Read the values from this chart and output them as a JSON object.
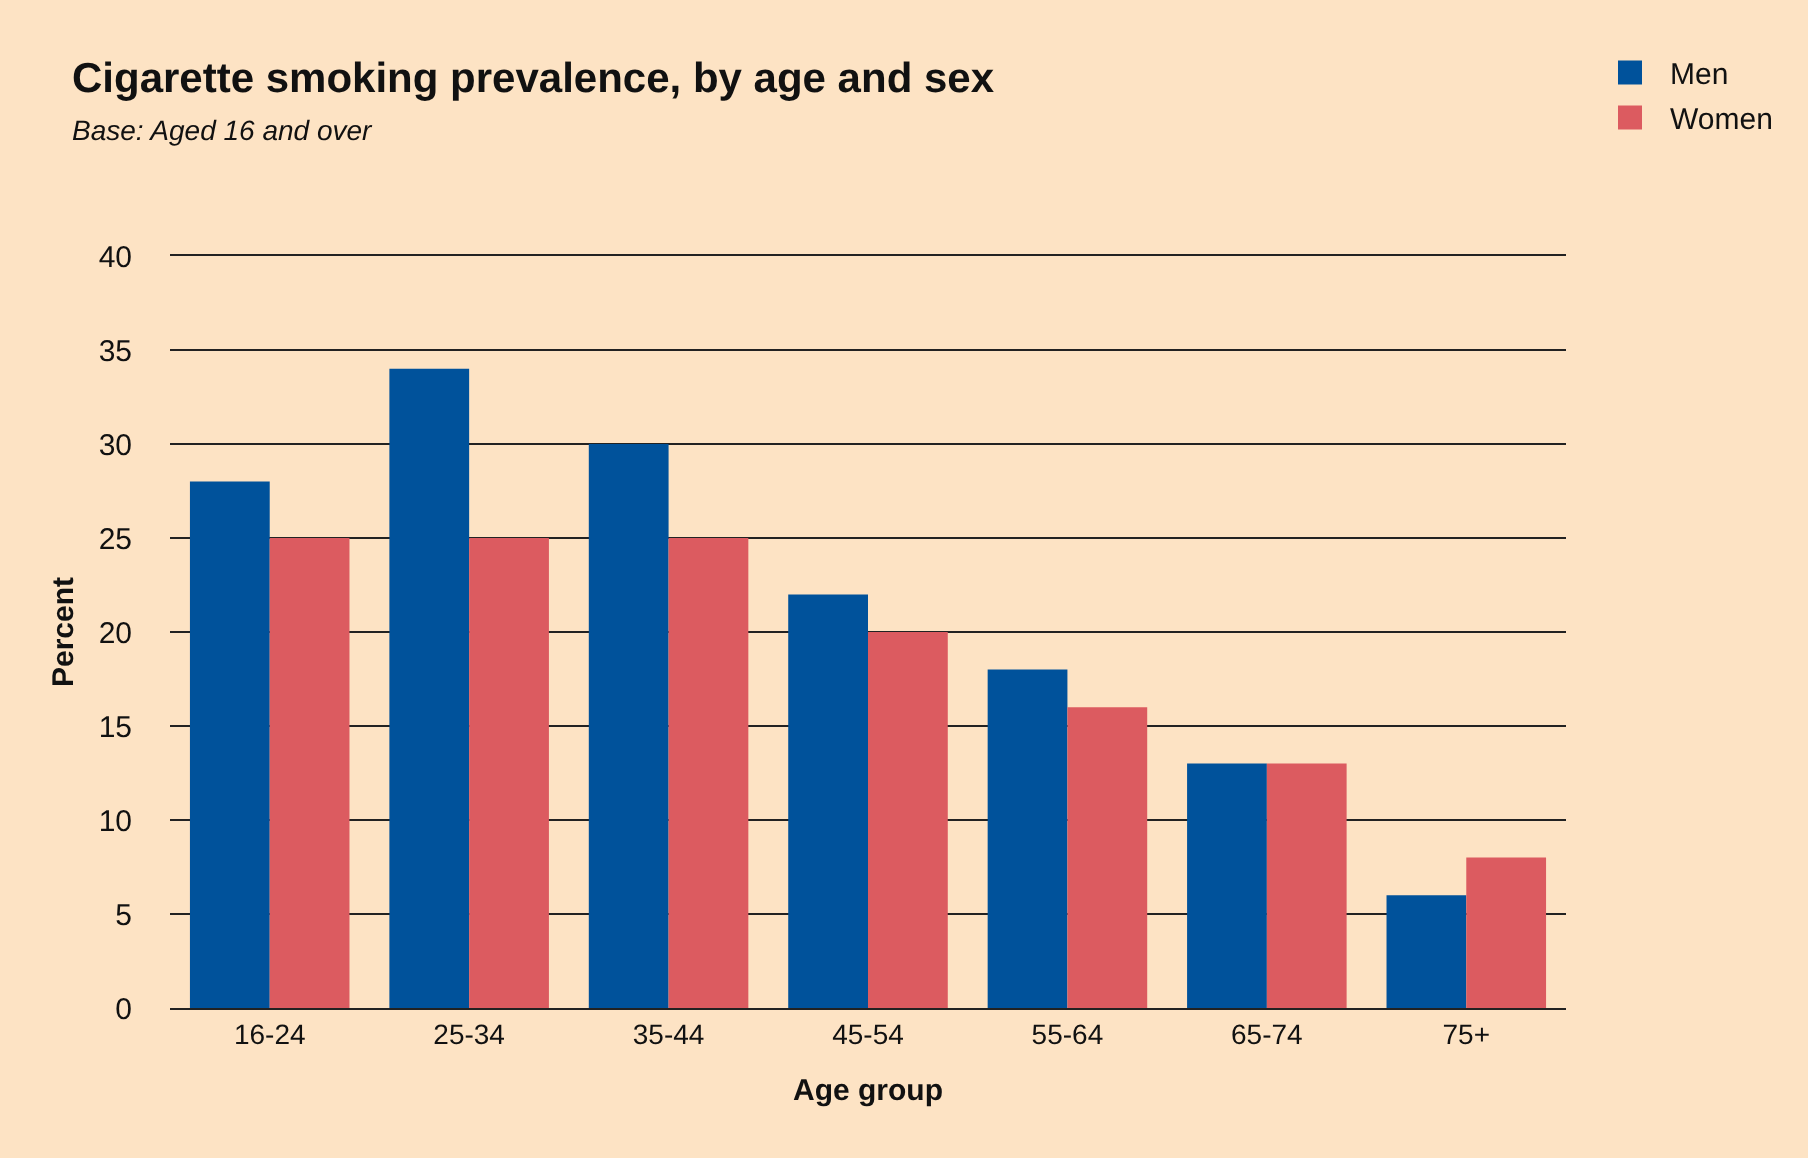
{
  "chart_data": {
    "type": "bar",
    "title": "Cigarette smoking prevalence, by age and sex",
    "subtitle": "Base: Aged 16 and over",
    "xlabel": "Age group",
    "ylabel": "Percent",
    "categories": [
      "16-24",
      "25-34",
      "35-44",
      "45-54",
      "55-64",
      "65-74",
      "75+"
    ],
    "series": [
      {
        "name": "Men",
        "color": "#00529b",
        "values": [
          28,
          34,
          30,
          22,
          18,
          13,
          6
        ]
      },
      {
        "name": "Women",
        "color": "#dc5b60",
        "values": [
          25,
          25,
          25,
          20,
          16,
          13,
          8
        ]
      }
    ],
    "ylim": [
      0,
      40
    ],
    "yticks": [
      0,
      5,
      10,
      15,
      20,
      25,
      30,
      35,
      40
    ],
    "grid": "y",
    "legend": "top right"
  }
}
